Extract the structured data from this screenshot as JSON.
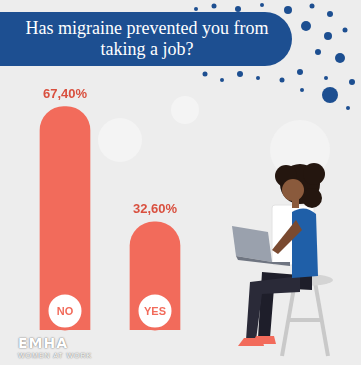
{
  "chart_data": {
    "type": "bar",
    "title": "Has migraine prevented you from taking a job?",
    "categories": [
      "NO",
      "YES"
    ],
    "values": [
      67.4,
      32.6
    ],
    "value_labels": [
      "67,40%",
      "32,60%"
    ],
    "data_labels": true,
    "color": "#f26b5b",
    "tick_labels": false,
    "grid": false,
    "annotations": [
      "EMHA",
      "WOMEN AT WORK"
    ]
  }
}
